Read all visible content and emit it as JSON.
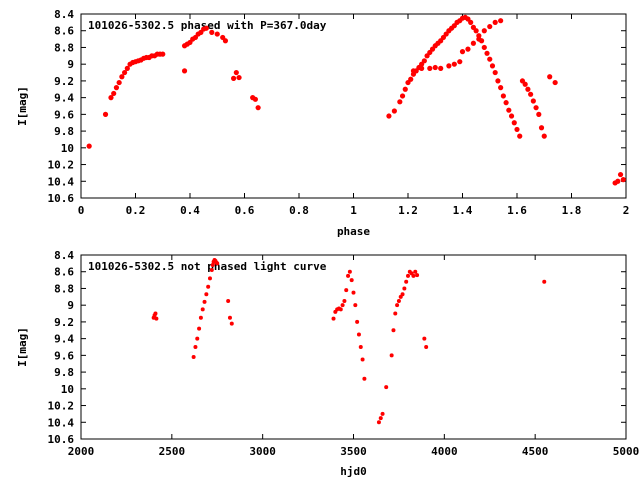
{
  "chart_data": [
    {
      "type": "scatter",
      "title": "101026-5302.5 phased with P=367.0day",
      "xlabel": "phase",
      "ylabel": "I[mag]",
      "xlim": [
        0,
        2
      ],
      "ylim": [
        10.6,
        8.4
      ],
      "y_inverted": true,
      "grid": false,
      "color": "#ff0000",
      "xticks": [
        "0",
        "0.2",
        "0.4",
        "0.6",
        "0.8",
        "1",
        "1.2",
        "1.4",
        "1.6",
        "1.8",
        "2"
      ],
      "yticks": [
        "8.4",
        "8.6",
        "8.8",
        "9",
        "9.2",
        "9.4",
        "9.6",
        "9.8",
        "10",
        "10.2",
        "10.4",
        "10.6"
      ],
      "series": [
        {
          "x": [
            0.03,
            0.09,
            0.11,
            0.12,
            0.13,
            0.14,
            0.15,
            0.16,
            0.17,
            0.18,
            0.19,
            0.2,
            0.21,
            0.22,
            0.23,
            0.24,
            0.25,
            0.26,
            0.27,
            0.28,
            0.29,
            0.3,
            0.38,
            0.39,
            0.4,
            0.41,
            0.42,
            0.43,
            0.44,
            0.45,
            0.46,
            0.48,
            0.5,
            0.52,
            0.53,
            0.56,
            0.57,
            0.58,
            0.63,
            0.64,
            0.65,
            0.38,
            1.13,
            1.15,
            1.17,
            1.18,
            1.19,
            1.2,
            1.21,
            1.22,
            1.23,
            1.24,
            1.25,
            1.26,
            1.27,
            1.28,
            1.29,
            1.3,
            1.31,
            1.32,
            1.33,
            1.34,
            1.35,
            1.36,
            1.37,
            1.38,
            1.39,
            1.4,
            1.41,
            1.42,
            1.43,
            1.44,
            1.45,
            1.46,
            1.47,
            1.48,
            1.49,
            1.5,
            1.51,
            1.52,
            1.53,
            1.54,
            1.55,
            1.56,
            1.57,
            1.58,
            1.59,
            1.6,
            1.61,
            1.62,
            1.63,
            1.64,
            1.65,
            1.66,
            1.67,
            1.68,
            1.69,
            1.7,
            1.72,
            1.74,
            1.22,
            1.25,
            1.28,
            1.3,
            1.32,
            1.35,
            1.37,
            1.39,
            1.4,
            1.42,
            1.44,
            1.46,
            1.48,
            1.5,
            1.52,
            1.54,
            1.96,
            1.97,
            1.98,
            1.99
          ],
          "y": [
            9.98,
            9.6,
            9.4,
            9.35,
            9.28,
            9.22,
            9.15,
            9.1,
            9.05,
            9.0,
            8.98,
            8.97,
            8.96,
            8.95,
            8.93,
            8.92,
            8.92,
            8.9,
            8.9,
            8.88,
            8.88,
            8.88,
            8.78,
            8.76,
            8.74,
            8.7,
            8.68,
            8.64,
            8.62,
            8.58,
            8.57,
            8.62,
            8.64,
            8.68,
            8.72,
            9.17,
            9.1,
            9.16,
            9.4,
            9.42,
            9.52,
            9.08,
            9.62,
            9.56,
            9.45,
            9.38,
            9.3,
            9.22,
            9.18,
            9.12,
            9.08,
            9.04,
            9.0,
            8.96,
            8.9,
            8.86,
            8.82,
            8.78,
            8.75,
            8.72,
            8.68,
            8.64,
            8.6,
            8.57,
            8.54,
            8.5,
            8.48,
            8.45,
            8.44,
            8.46,
            8.5,
            8.56,
            8.6,
            8.66,
            8.72,
            8.8,
            8.87,
            8.94,
            9.02,
            9.1,
            9.2,
            9.28,
            9.38,
            9.46,
            9.55,
            9.62,
            9.7,
            9.78,
            9.86,
            9.2,
            9.24,
            9.3,
            9.36,
            9.44,
            9.52,
            9.6,
            9.76,
            9.86,
            9.15,
            9.22,
            9.08,
            9.05,
            9.05,
            9.04,
            9.05,
            9.02,
            9.0,
            8.97,
            8.85,
            8.82,
            8.75,
            8.7,
            8.6,
            8.55,
            8.5,
            8.48,
            10.42,
            10.4,
            10.32,
            10.38
          ]
        }
      ]
    },
    {
      "type": "scatter",
      "title": "101026-5302.5 not phased light curve",
      "xlabel": "hjd0",
      "ylabel": "I[mag]",
      "xlim": [
        2000,
        5000
      ],
      "ylim": [
        10.6,
        8.4
      ],
      "y_inverted": true,
      "grid": false,
      "color": "#ff0000",
      "xticks": [
        "2000",
        "2500",
        "3000",
        "3500",
        "4000",
        "4500",
        "5000"
      ],
      "yticks": [
        "8.4",
        "8.6",
        "8.8",
        "9",
        "9.2",
        "9.4",
        "9.6",
        "9.8",
        "10",
        "10.2",
        "10.4",
        "10.6"
      ],
      "series": [
        {
          "x": [
            2400,
            2405,
            2410,
            2415,
            2620,
            2630,
            2640,
            2650,
            2660,
            2670,
            2680,
            2690,
            2700,
            2710,
            2720,
            2725,
            2730,
            2735,
            2740,
            2745,
            2750,
            2810,
            2820,
            2830,
            3390,
            3400,
            3410,
            3420,
            3430,
            3440,
            3450,
            3460,
            3470,
            3480,
            3490,
            3500,
            3510,
            3520,
            3530,
            3540,
            3550,
            3560,
            3640,
            3650,
            3660,
            3680,
            3710,
            3720,
            3730,
            3740,
            3750,
            3760,
            3770,
            3780,
            3790,
            3800,
            3810,
            3820,
            3830,
            3840,
            3850,
            3890,
            3900,
            4550
          ],
          "y": [
            9.15,
            9.12,
            9.1,
            9.16,
            9.62,
            9.5,
            9.4,
            9.28,
            9.15,
            9.05,
            8.96,
            8.87,
            8.78,
            8.68,
            8.58,
            8.52,
            8.48,
            8.46,
            8.47,
            8.49,
            8.5,
            8.95,
            9.15,
            9.22,
            9.16,
            9.08,
            9.05,
            9.04,
            9.05,
            9.0,
            8.95,
            8.82,
            8.65,
            8.6,
            8.7,
            8.85,
            9.0,
            9.2,
            9.35,
            9.5,
            9.65,
            9.88,
            10.4,
            10.35,
            10.3,
            9.98,
            9.6,
            9.3,
            9.1,
            9.0,
            8.95,
            8.9,
            8.87,
            8.8,
            8.72,
            8.65,
            8.6,
            8.62,
            8.65,
            8.6,
            8.64,
            9.4,
            9.5,
            8.72
          ]
        }
      ]
    }
  ]
}
